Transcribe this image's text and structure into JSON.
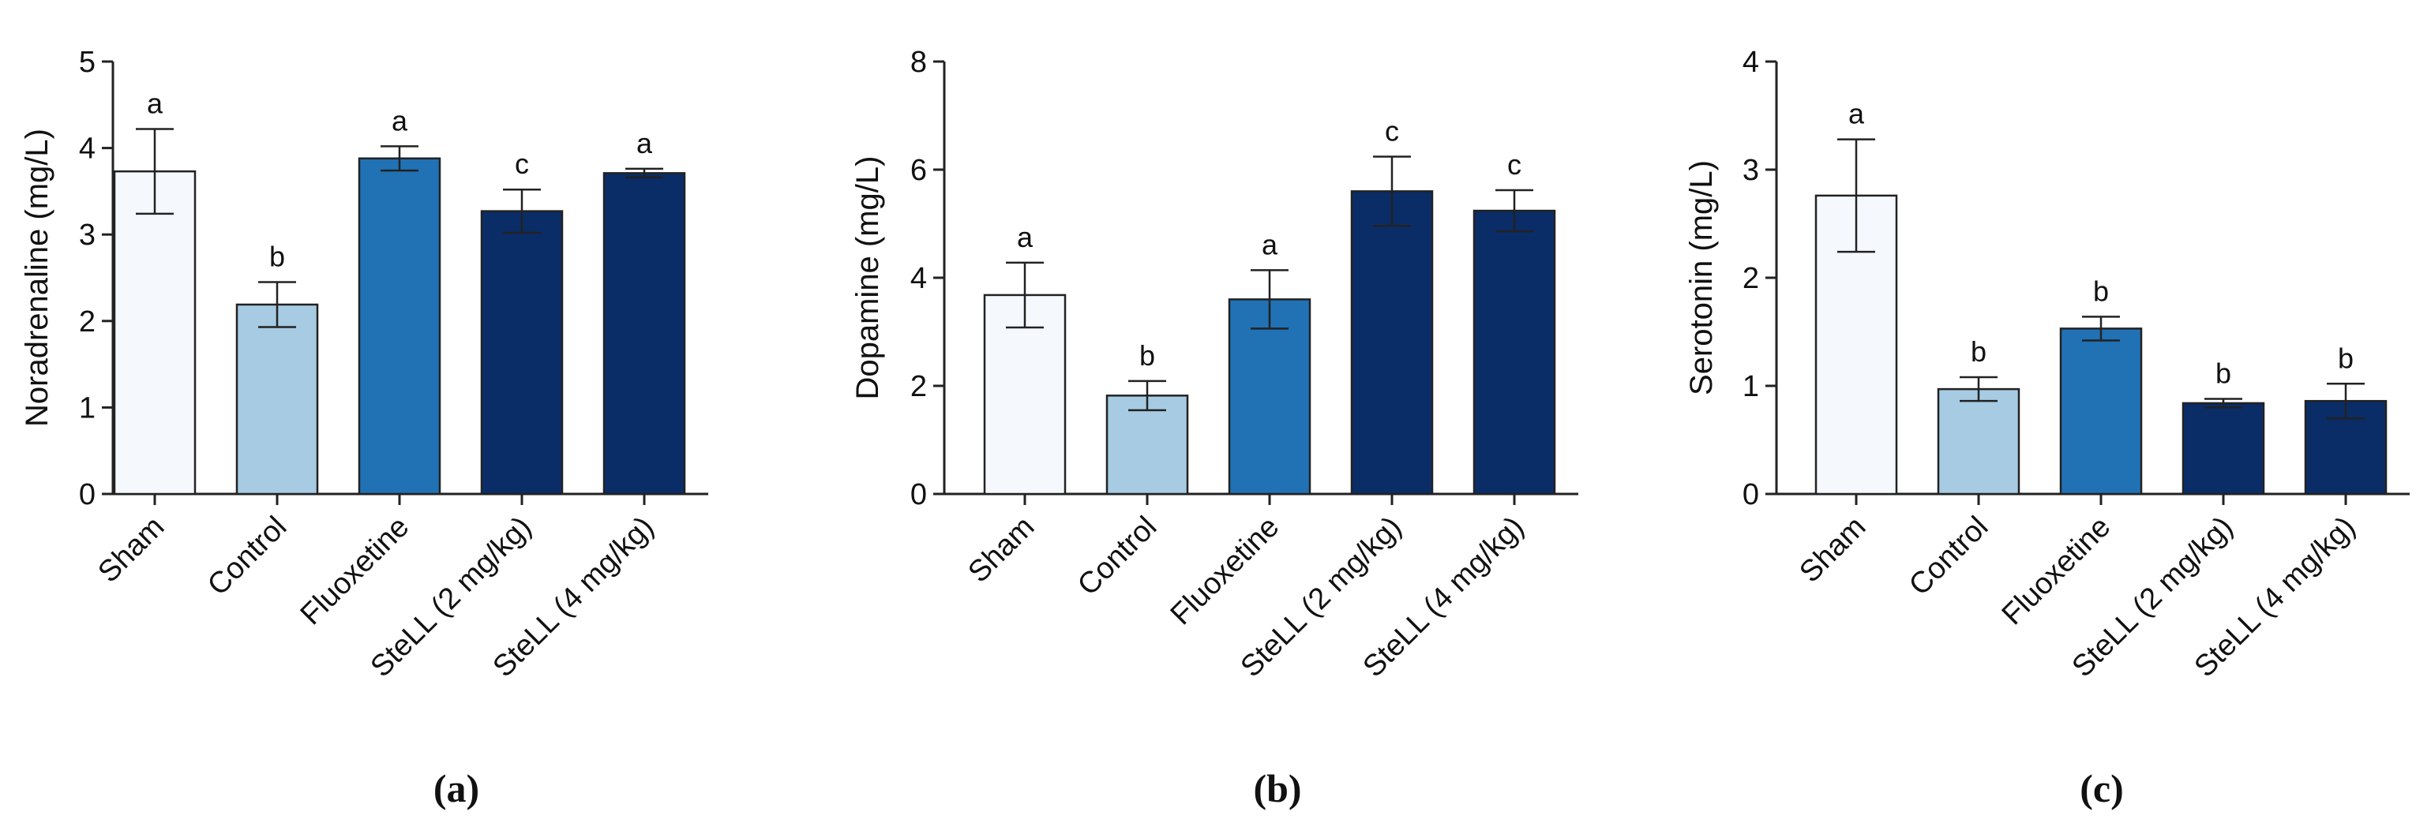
{
  "figure_labels": [
    "(a)",
    "(b)",
    "(c)"
  ],
  "chart_data": [
    {
      "type": "bar",
      "panel": "(a)",
      "ylabel": "Noradrenaline (mg/L)",
      "xlabel": "",
      "ylim": [
        0,
        5
      ],
      "yticks": [
        0,
        1,
        2,
        3,
        4,
        5
      ],
      "categories": [
        "Sham",
        "Control",
        "Fluoxetine",
        "SteLL (2 mg/kg)",
        "SteLL (4 mg/kg)"
      ],
      "values": [
        3.73,
        2.19,
        3.88,
        3.27,
        3.71
      ],
      "errors": [
        0.49,
        0.26,
        0.14,
        0.25,
        0.05
      ],
      "significance": [
        "a",
        "b",
        "a",
        "c",
        "a"
      ],
      "colors": [
        "#f5f9fe",
        "#a6cbe3",
        "#2171b5",
        "#0a2d68",
        "#0a2d68"
      ]
    },
    {
      "type": "bar",
      "panel": "(b)",
      "ylabel": "Dopamine (mg/L)",
      "xlabel": "",
      "ylim": [
        0,
        8
      ],
      "yticks": [
        0,
        2,
        4,
        6,
        8
      ],
      "categories": [
        "Sham",
        "Control",
        "Fluoxetine",
        "SteLL (2 mg/kg)",
        "SteLL (4 mg/kg)"
      ],
      "values": [
        3.68,
        1.82,
        3.6,
        5.6,
        5.24
      ],
      "errors": [
        0.6,
        0.27,
        0.54,
        0.64,
        0.38
      ],
      "significance": [
        "a",
        "b",
        "a",
        "c",
        "c"
      ],
      "colors": [
        "#f5f9fe",
        "#a6cbe3",
        "#2171b5",
        "#0a2d68",
        "#0a2d68"
      ]
    },
    {
      "type": "bar",
      "panel": "(c)",
      "ylabel": "Serotonin (mg/L)",
      "xlabel": "",
      "ylim": [
        0,
        4
      ],
      "yticks": [
        0,
        1,
        2,
        3,
        4
      ],
      "categories": [
        "Sham",
        "Control",
        "Fluoxetine",
        "SteLL (2 mg/kg)",
        "SteLL (4 mg/kg)"
      ],
      "values": [
        2.76,
        0.97,
        1.53,
        0.84,
        0.86
      ],
      "errors": [
        0.52,
        0.11,
        0.11,
        0.04,
        0.16
      ],
      "significance": [
        "a",
        "b",
        "b",
        "b",
        "b"
      ],
      "colors": [
        "#f5f9fe",
        "#a6cbe3",
        "#2171b5",
        "#0a2d68",
        "#0a2d68"
      ]
    }
  ]
}
